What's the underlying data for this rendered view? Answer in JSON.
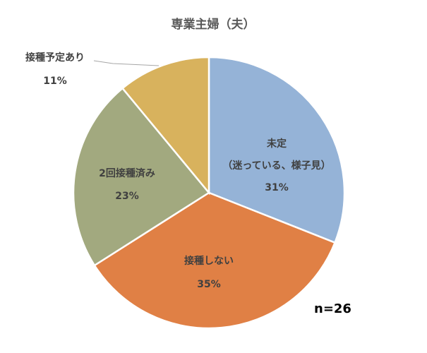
{
  "chart_data": {
    "type": "pie",
    "title": "専業主婦（夫）",
    "start_angle_deg": 0,
    "direction": "clockwise",
    "slices": [
      {
        "label_lines": [
          "未定",
          "（迷っている、様子見）"
        ],
        "value": 31,
        "value_label": "31%",
        "color": "#95B3D7"
      },
      {
        "label_lines": [
          "接種しない"
        ],
        "value": 35,
        "value_label": "35%",
        "color": "#E08045"
      },
      {
        "label_lines": [
          "2回接種済み"
        ],
        "value": 23,
        "value_label": "23%",
        "color": "#A2A97F"
      },
      {
        "label_lines": [
          "接種予定あり"
        ],
        "value": 11,
        "value_label": "11%",
        "color": "#D8B25D"
      }
    ]
  },
  "annotation": "n=26"
}
